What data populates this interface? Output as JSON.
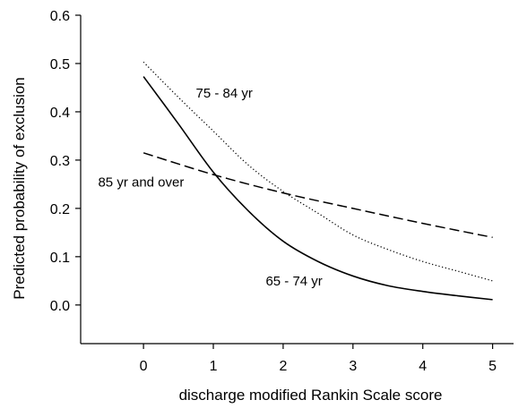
{
  "chart_data": {
    "type": "line",
    "title": "",
    "xlabel": "discharge modified Rankin Scale score",
    "ylabel": "Predicted probability of exclusion",
    "xlim": [
      -0.9,
      5.3
    ],
    "ylim": [
      -0.08,
      0.6
    ],
    "xticks": [
      0,
      1,
      2,
      3,
      4,
      5
    ],
    "yticks": [
      0.0,
      0.1,
      0.2,
      0.3,
      0.4,
      0.5,
      0.6
    ],
    "xtick_labels": [
      "0",
      "1",
      "2",
      "3",
      "4",
      "5"
    ],
    "ytick_labels": [
      "0.0",
      "0.1",
      "0.2",
      "0.3",
      "0.4",
      "0.5",
      "0.6"
    ],
    "grid": false,
    "legend": "none (series labelled directly on the plot)",
    "series": [
      {
        "name": "65 - 74 yr",
        "line_style": "solid",
        "x": [
          0,
          0.5,
          1,
          1.5,
          2,
          2.5,
          3,
          3.5,
          4,
          4.5,
          5
        ],
        "y": [
          0.473,
          0.375,
          0.275,
          0.195,
          0.132,
          0.09,
          0.06,
          0.04,
          0.028,
          0.019,
          0.011
        ]
      },
      {
        "name": "75 - 84 yr",
        "line_style": "dotted",
        "x": [
          0,
          0.5,
          1,
          1.5,
          2,
          2.5,
          3,
          3.5,
          4,
          4.5,
          5
        ],
        "y": [
          0.503,
          0.43,
          0.36,
          0.29,
          0.235,
          0.19,
          0.145,
          0.115,
          0.09,
          0.07,
          0.05
        ]
      },
      {
        "name": "85 yr and over",
        "line_style": "dashed",
        "x": [
          0,
          1,
          2,
          3,
          4,
          5
        ],
        "y": [
          0.315,
          0.27,
          0.232,
          0.2,
          0.169,
          0.14
        ]
      }
    ],
    "annotations": [
      {
        "text": "75 - 84 yr",
        "x": 0.75,
        "y": 0.43
      },
      {
        "text": "85 yr and over",
        "x": -0.65,
        "y": 0.245
      },
      {
        "text": "65 - 74 yr",
        "x": 1.75,
        "y": 0.04
      }
    ]
  }
}
